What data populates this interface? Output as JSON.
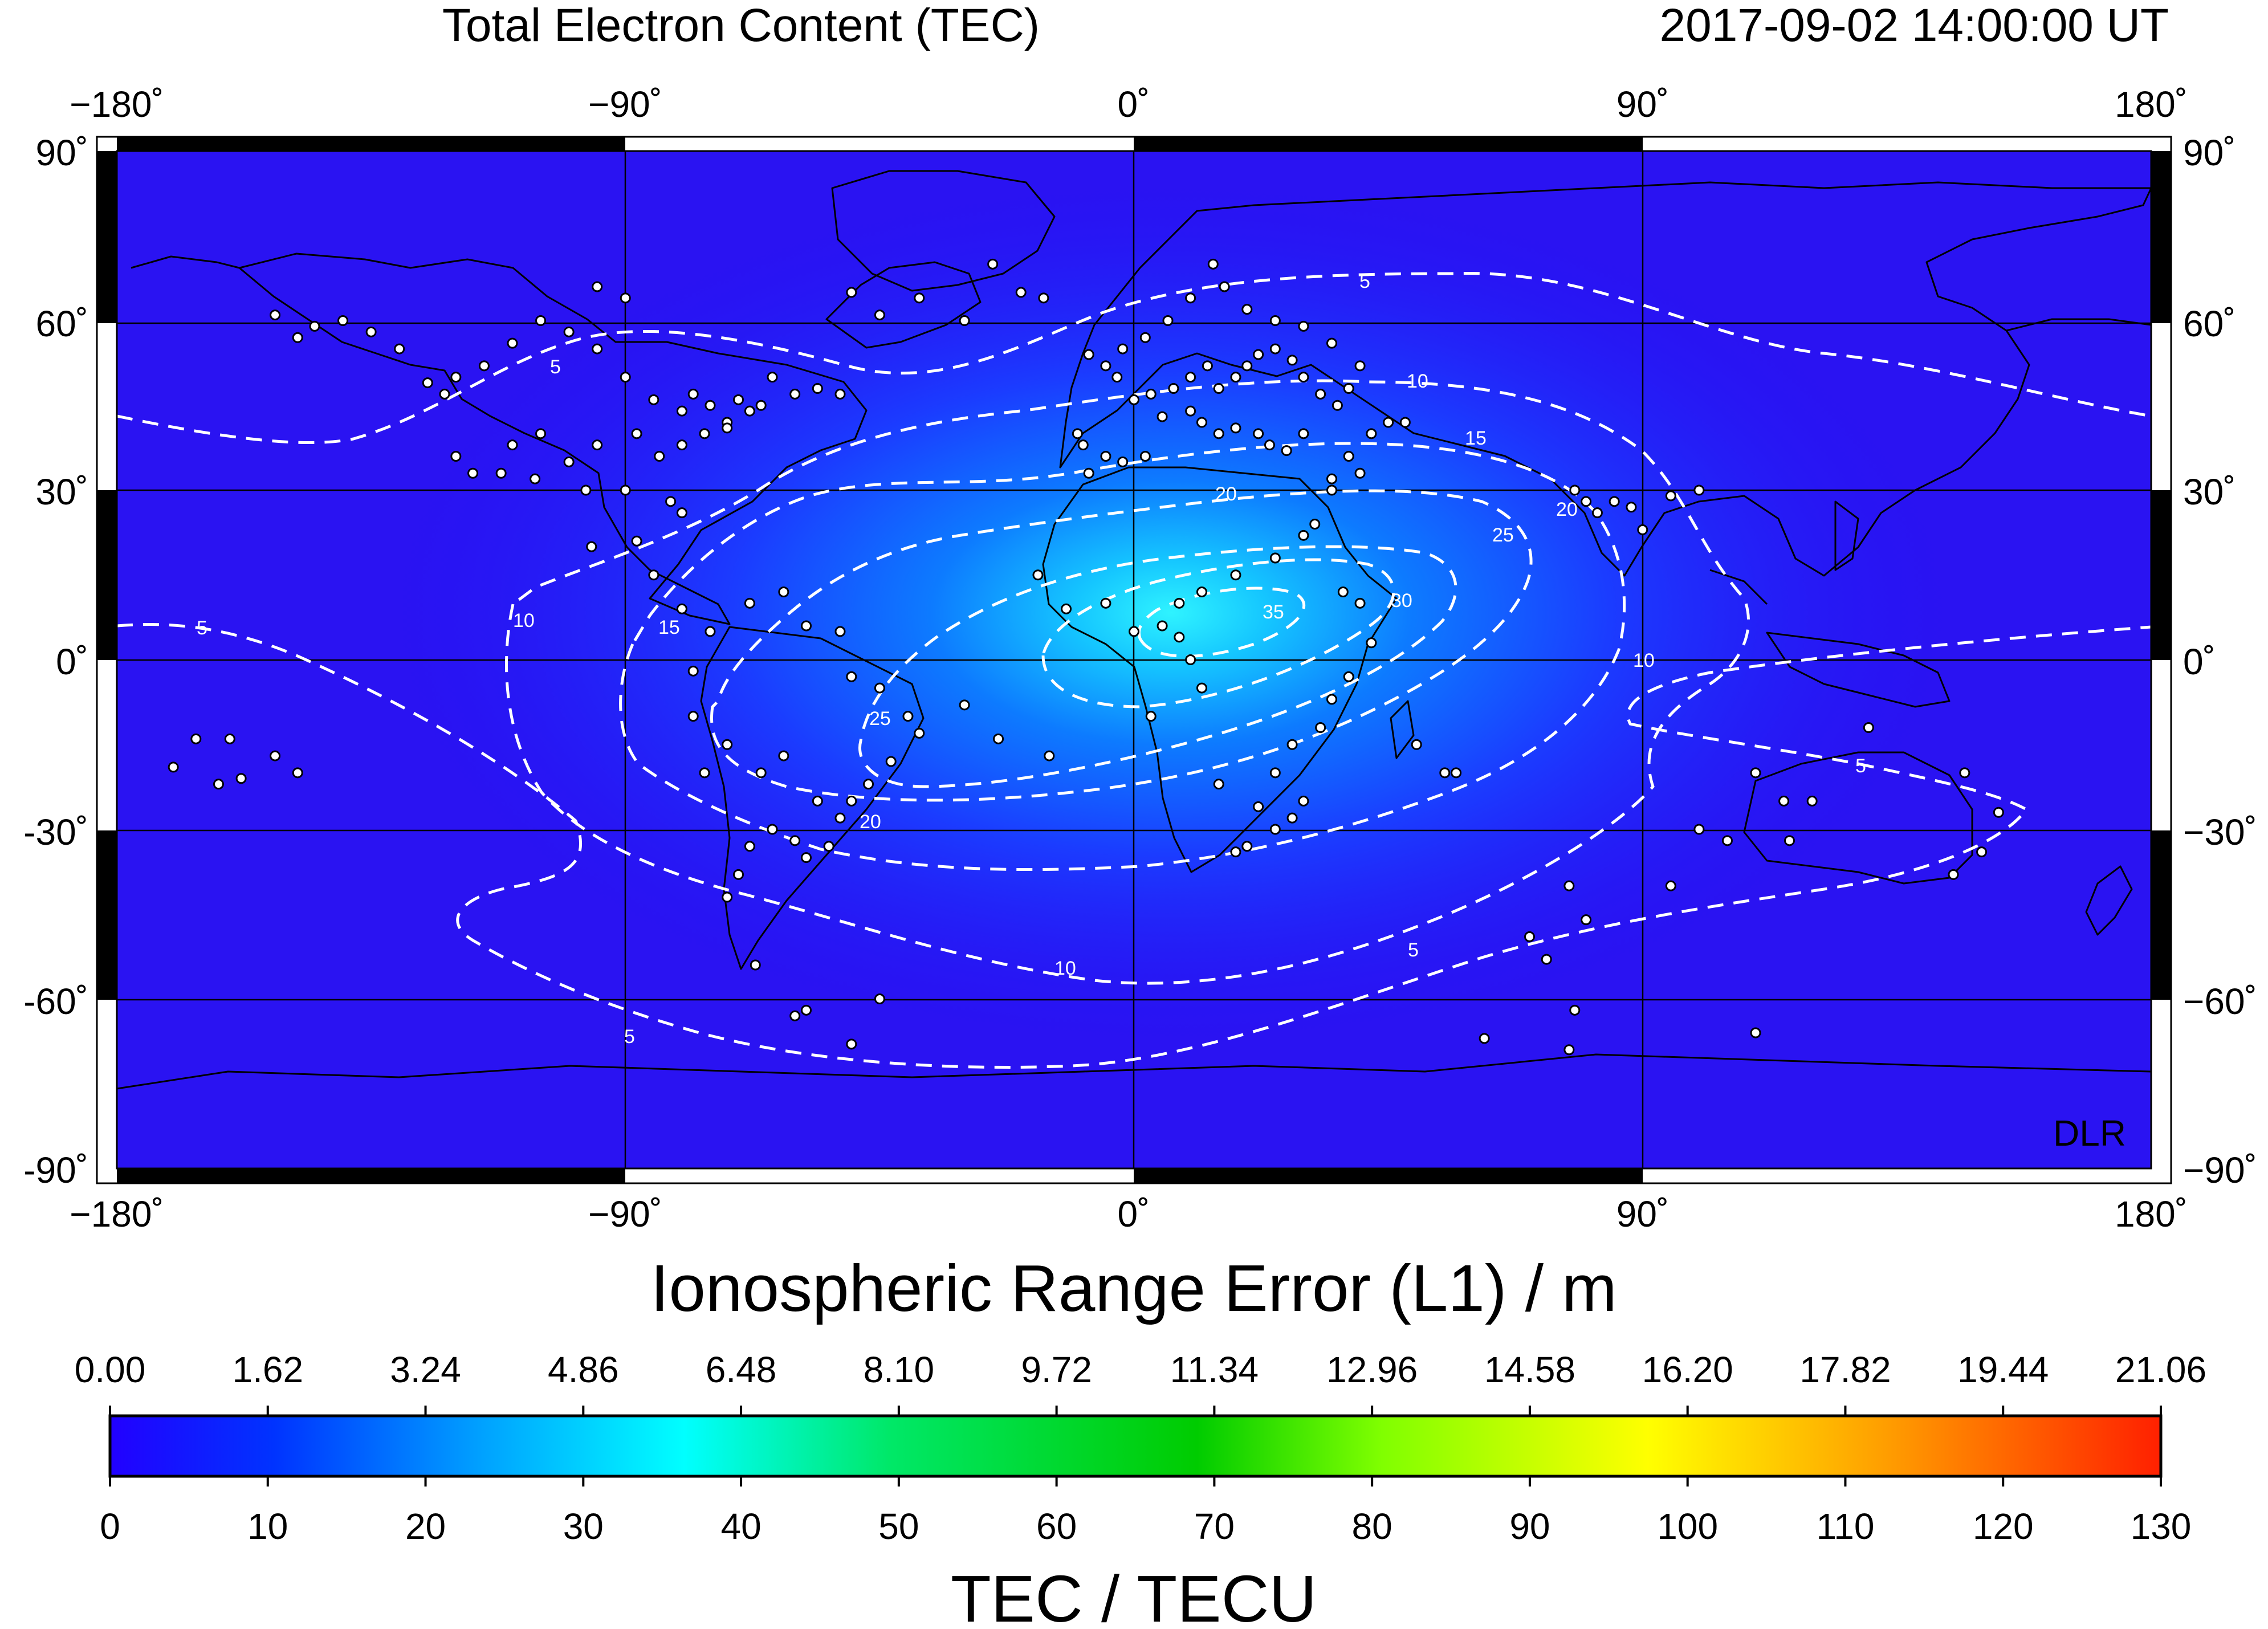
{
  "header": {
    "title": "Total Electron Content (TEC)",
    "timestamp": "2017-09-02  14:00:00 UT"
  },
  "map": {
    "lon_labels": [
      "−180˚",
      "−90˚",
      "0˚",
      "90˚",
      "180˚"
    ],
    "lat_labels": [
      "90˚",
      "60˚",
      "30˚",
      "0˚",
      "−30˚",
      "−60˚",
      "−90˚"
    ],
    "lat_labels_left": [
      "90˚",
      "60˚",
      "30˚",
      "0˚",
      "-30˚",
      "-60˚",
      "-90˚"
    ],
    "credit": "DLR",
    "contour_color": "#ffffff",
    "station_color": "#ffffff",
    "contours": [
      {
        "level": "5",
        "labels": [
          "5",
          "5",
          "5",
          "5",
          "5",
          "5"
        ]
      },
      {
        "level": "10",
        "labels": [
          "10",
          "10",
          "10",
          "10"
        ]
      },
      {
        "level": "15",
        "labels": [
          "15",
          "15"
        ]
      },
      {
        "level": "20",
        "labels": [
          "20",
          "20",
          "20"
        ]
      },
      {
        "level": "25",
        "labels": [
          "25",
          "25"
        ]
      },
      {
        "level": "30",
        "labels": [
          "30"
        ]
      },
      {
        "level": "35",
        "labels": [
          "35"
        ]
      }
    ],
    "stations": [
      [
        -152,
        61
      ],
      [
        -148,
        57
      ],
      [
        -145,
        59
      ],
      [
        -140,
        60
      ],
      [
        -135,
        58
      ],
      [
        -130,
        55
      ],
      [
        -125,
        49
      ],
      [
        -122,
        47
      ],
      [
        -120,
        50
      ],
      [
        -115,
        52
      ],
      [
        -110,
        56
      ],
      [
        -105,
        60
      ],
      [
        -100,
        58
      ],
      [
        -95,
        55
      ],
      [
        -90,
        50
      ],
      [
        -85,
        46
      ],
      [
        -80,
        44
      ],
      [
        -78,
        47
      ],
      [
        -75,
        45
      ],
      [
        -72,
        42
      ],
      [
        -70,
        46
      ],
      [
        -66,
        45
      ],
      [
        -64,
        50
      ],
      [
        -60,
        47
      ],
      [
        -56,
        48
      ],
      [
        -52,
        47
      ],
      [
        -105,
        40
      ],
      [
        -110,
        38
      ],
      [
        -100,
        35
      ],
      [
        -95,
        38
      ],
      [
        -88,
        40
      ],
      [
        -84,
        36
      ],
      [
        -80,
        38
      ],
      [
        -76,
        40
      ],
      [
        -72,
        41
      ],
      [
        -68,
        44
      ],
      [
        -120,
        36
      ],
      [
        -117,
        33
      ],
      [
        -112,
        33
      ],
      [
        -106,
        32
      ],
      [
        -97,
        30
      ],
      [
        -90,
        30
      ],
      [
        -82,
        28
      ],
      [
        -80,
        26
      ],
      [
        -96,
        20
      ],
      [
        -88,
        21
      ],
      [
        -85,
        15
      ],
      [
        -80,
        9
      ],
      [
        -75,
        5
      ],
      [
        -68,
        10
      ],
      [
        -62,
        12
      ],
      [
        -58,
        6
      ],
      [
        -52,
        5
      ],
      [
        -50,
        -3
      ],
      [
        -45,
        -5
      ],
      [
        -40,
        -10
      ],
      [
        -38,
        -13
      ],
      [
        -43,
        -18
      ],
      [
        -47,
        -22
      ],
      [
        -50,
        -25
      ],
      [
        -52,
        -28
      ],
      [
        -56,
        -25
      ],
      [
        -60,
        -32
      ],
      [
        -64,
        -30
      ],
      [
        -68,
        -33
      ],
      [
        -70,
        -38
      ],
      [
        -72,
        -42
      ],
      [
        -76,
        -20
      ],
      [
        -78,
        -10
      ],
      [
        -78,
        -2
      ],
      [
        -72,
        -15
      ],
      [
        -66,
        -20
      ],
      [
        -62,
        -17
      ],
      [
        -58,
        -35
      ],
      [
        -54,
        -33
      ],
      [
        -67,
        -54
      ],
      [
        -60,
        -63
      ],
      [
        -58,
        -62
      ],
      [
        -45,
        -60
      ],
      [
        -50,
        -68
      ],
      [
        -166,
        -14
      ],
      [
        -160,
        -14
      ],
      [
        -170,
        -19
      ],
      [
        -152,
        -17
      ],
      [
        -148,
        -20
      ],
      [
        -158,
        -21
      ],
      [
        -162,
        -22
      ],
      [
        -30,
        -8
      ],
      [
        -24,
        -14
      ],
      [
        -15,
        -17
      ],
      [
        -10,
        40
      ],
      [
        -9,
        38
      ],
      [
        -8,
        33
      ],
      [
        -5,
        36
      ],
      [
        -2,
        35
      ],
      [
        2,
        36
      ],
      [
        5,
        43
      ],
      [
        3,
        47
      ],
      [
        7,
        48
      ],
      [
        10,
        50
      ],
      [
        13,
        52
      ],
      [
        15,
        48
      ],
      [
        18,
        50
      ],
      [
        20,
        52
      ],
      [
        22,
        54
      ],
      [
        25,
        55
      ],
      [
        28,
        53
      ],
      [
        30,
        50
      ],
      [
        33,
        47
      ],
      [
        36,
        45
      ],
      [
        38,
        48
      ],
      [
        40,
        52
      ],
      [
        35,
        56
      ],
      [
        30,
        59
      ],
      [
        25,
        60
      ],
      [
        20,
        62
      ],
      [
        16,
        66
      ],
      [
        14,
        70
      ],
      [
        10,
        64
      ],
      [
        6,
        60
      ],
      [
        2,
        57
      ],
      [
        -2,
        55
      ],
      [
        -5,
        52
      ],
      [
        -8,
        54
      ],
      [
        -3,
        50
      ],
      [
        0,
        46
      ],
      [
        10,
        44
      ],
      [
        12,
        42
      ],
      [
        15,
        40
      ],
      [
        18,
        41
      ],
      [
        22,
        40
      ],
      [
        24,
        38
      ],
      [
        27,
        37
      ],
      [
        30,
        40
      ],
      [
        35,
        32
      ],
      [
        38,
        36
      ],
      [
        42,
        40
      ],
      [
        45,
        42
      ],
      [
        48,
        42
      ],
      [
        40,
        33
      ],
      [
        35,
        30
      ],
      [
        32,
        24
      ],
      [
        -17,
        15
      ],
      [
        -12,
        9
      ],
      [
        -5,
        10
      ],
      [
        0,
        5
      ],
      [
        5,
        6
      ],
      [
        8,
        10
      ],
      [
        12,
        12
      ],
      [
        18,
        15
      ],
      [
        25,
        18
      ],
      [
        30,
        22
      ],
      [
        37,
        12
      ],
      [
        40,
        10
      ],
      [
        42,
        3
      ],
      [
        38,
        -3
      ],
      [
        35,
        -7
      ],
      [
        33,
        -12
      ],
      [
        28,
        -15
      ],
      [
        25,
        -20
      ],
      [
        30,
        -25
      ],
      [
        28,
        -28
      ],
      [
        25,
        -30
      ],
      [
        20,
        -33
      ],
      [
        18,
        -34
      ],
      [
        22,
        -26
      ],
      [
        15,
        -22
      ],
      [
        12,
        -5
      ],
      [
        10,
        0
      ],
      [
        8,
        4
      ],
      [
        3,
        -10
      ],
      [
        55,
        -20
      ],
      [
        57,
        -20
      ],
      [
        50,
        -15
      ],
      [
        73,
        -53
      ],
      [
        70,
        -49
      ],
      [
        77,
        -40
      ],
      [
        80,
        -46
      ],
      [
        78,
        -62
      ],
      [
        62,
        -67
      ],
      [
        77,
        -69
      ],
      [
        110,
        -66
      ],
      [
        100,
        -30
      ],
      [
        105,
        -32
      ],
      [
        116,
        -32
      ],
      [
        120,
        -25
      ],
      [
        130,
        -12
      ],
      [
        145,
        -38
      ],
      [
        150,
        -34
      ],
      [
        153,
        -27
      ],
      [
        147,
        -20
      ],
      [
        88,
        27
      ],
      [
        90,
        23
      ],
      [
        85,
        28
      ],
      [
        95,
        29
      ],
      [
        100,
        30
      ],
      [
        95,
        -40
      ],
      [
        110,
        -20
      ],
      [
        115,
        -25
      ],
      [
        -90,
        64
      ],
      [
        -95,
        66
      ],
      [
        -50,
        65
      ],
      [
        -45,
        61
      ],
      [
        -38,
        64
      ],
      [
        -20,
        65
      ],
      [
        -16,
        64
      ],
      [
        -25,
        70
      ],
      [
        -30,
        60
      ],
      [
        78,
        30
      ],
      [
        80,
        28
      ],
      [
        82,
        26
      ]
    ]
  },
  "colorbar": {
    "top_title": "Ionospheric Range Error (L1) / m",
    "top_ticks": [
      "0.00",
      "1.62",
      "3.24",
      "4.86",
      "6.48",
      "8.10",
      "9.72",
      "11.34",
      "12.96",
      "14.58",
      "16.20",
      "17.82",
      "19.44",
      "21.06"
    ],
    "bottom_ticks": [
      "0",
      "10",
      "20",
      "30",
      "40",
      "50",
      "60",
      "70",
      "80",
      "90",
      "100",
      "110",
      "120",
      "130"
    ],
    "bottom_title": "TEC / TECU",
    "range": [
      0,
      130
    ],
    "stops": [
      "#2200ff",
      "#0033ff",
      "#00a0ff",
      "#00ffff",
      "#00e060",
      "#00cc00",
      "#80ff00",
      "#ffff00",
      "#ff9a00",
      "#ff2000"
    ]
  }
}
